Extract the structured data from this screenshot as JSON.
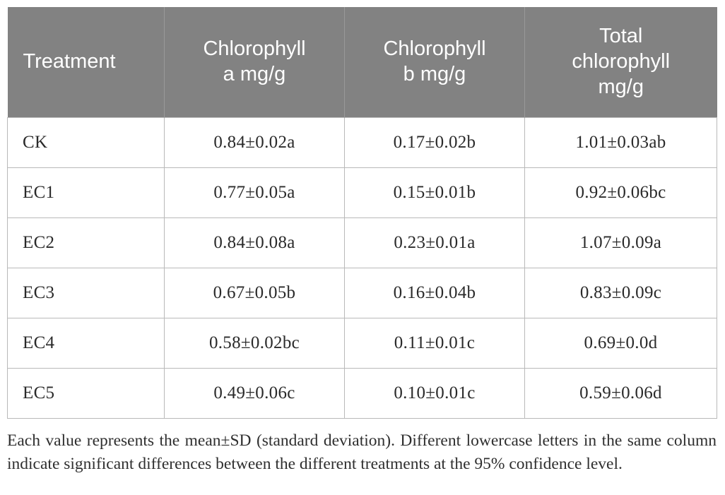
{
  "table": {
    "columns": {
      "treatment": "Treatment",
      "chl_a": "Chlorophyll\na mg/g",
      "chl_b": "Chlorophyll\nb mg/g",
      "total": "Total\nchlorophyll\nmg/g"
    },
    "rows": [
      {
        "treatment": "CK",
        "chl_a": "0.84±0.02a",
        "chl_b": "0.17±0.02b",
        "total": "1.01±0.03ab"
      },
      {
        "treatment": "EC1",
        "chl_a": "0.77±0.05a",
        "chl_b": "0.15±0.01b",
        "total": "0.92±0.06bc"
      },
      {
        "treatment": "EC2",
        "chl_a": "0.84±0.08a",
        "chl_b": "0.23±0.01a",
        "total": "1.07±0.09a"
      },
      {
        "treatment": "EC3",
        "chl_a": "0.67±0.05b",
        "chl_b": "0.16±0.04b",
        "total": "0.83±0.09c"
      },
      {
        "treatment": "EC4",
        "chl_a": "0.58±0.02bc",
        "chl_b": "0.11±0.01c",
        "total": "0.69±0.0d"
      },
      {
        "treatment": "EC5",
        "chl_a": "0.49±0.06c",
        "chl_b": "0.10±0.01c",
        "total": "0.59±0.06d"
      }
    ]
  },
  "footnote": "Each value represents the mean±SD (standard deviation). Different lowercase letters in the same column indicate significant differences between the different treatments at the 95% confidence level.",
  "colors": {
    "header_bg": "#828282",
    "header_text": "#ffffff",
    "body_text": "#2a2a2a",
    "grid_border": "#b9b9b9"
  }
}
